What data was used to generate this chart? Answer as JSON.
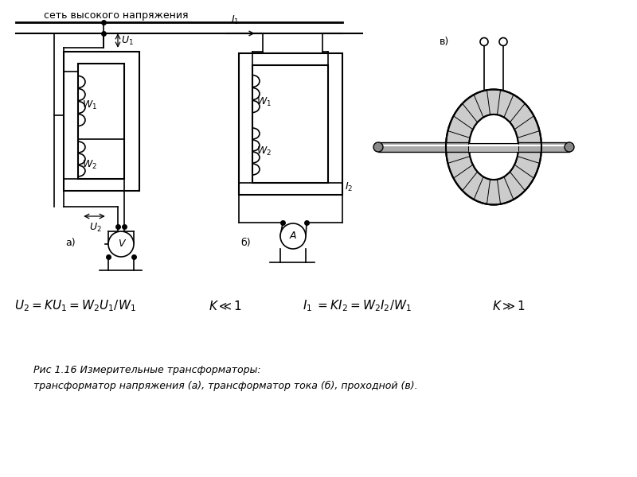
{
  "title": "",
  "bg_color": "#ffffff",
  "line_color": "#000000",
  "fig_width": 8.0,
  "fig_height": 6.0,
  "top_label": "сеть высокого напряжения",
  "label_a": "а)",
  "label_b": "б)",
  "label_v": "в)",
  "caption_line1": "Рис 1.16 Измерительные трансформаторы:",
  "caption_line2": "трансформатор напряжения (а), трансформатор тока (б), проходной (в)."
}
